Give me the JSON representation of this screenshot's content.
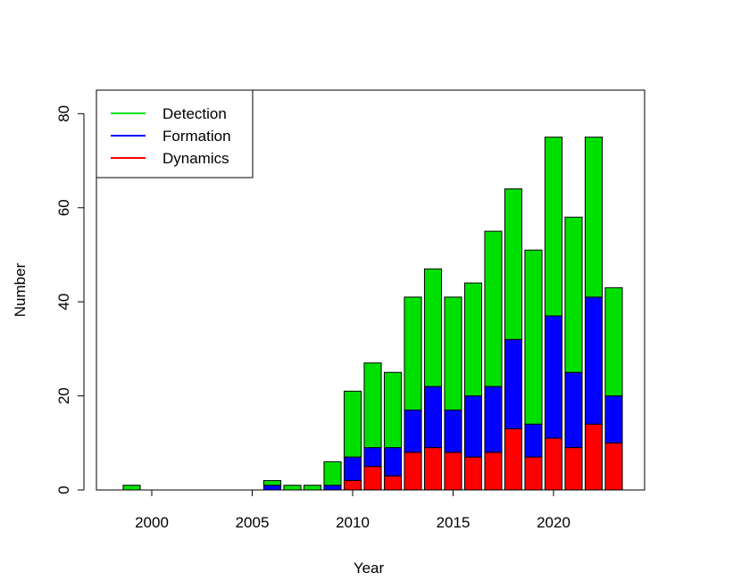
{
  "chart_data": {
    "type": "bar",
    "stacked": true,
    "xlabel": "Year",
    "ylabel": "Number",
    "xlim": [
      1997.5,
      2024.2
    ],
    "ylim": [
      0,
      80
    ],
    "xticks": [
      2000,
      2005,
      2010,
      2015,
      2020
    ],
    "yticks": [
      0,
      20,
      40,
      60,
      80
    ],
    "grid": false,
    "legend_position": "top-left",
    "categories": [
      1999,
      2006,
      2007,
      2008,
      2009,
      2010,
      2011,
      2012,
      2013,
      2014,
      2015,
      2016,
      2017,
      2018,
      2019,
      2020,
      2021,
      2022,
      2023
    ],
    "series": [
      {
        "name": "Dynamics",
        "color": "#ff0000",
        "values": [
          0,
          0,
          0,
          0,
          0,
          2,
          5,
          3,
          8,
          9,
          8,
          7,
          8,
          13,
          7,
          11,
          9,
          14,
          10
        ]
      },
      {
        "name": "Formation",
        "color": "#0000ff",
        "values": [
          0,
          1,
          0,
          0,
          1,
          5,
          4,
          6,
          9,
          13,
          9,
          13,
          14,
          19,
          7,
          26,
          16,
          27,
          10
        ]
      },
      {
        "name": "Detection",
        "color": "#00e000",
        "values": [
          1,
          1,
          1,
          1,
          5,
          14,
          18,
          16,
          24,
          25,
          24,
          24,
          33,
          32,
          37,
          38,
          33,
          34,
          23
        ]
      }
    ],
    "legend_order": [
      "Detection",
      "Formation",
      "Dynamics"
    ]
  }
}
